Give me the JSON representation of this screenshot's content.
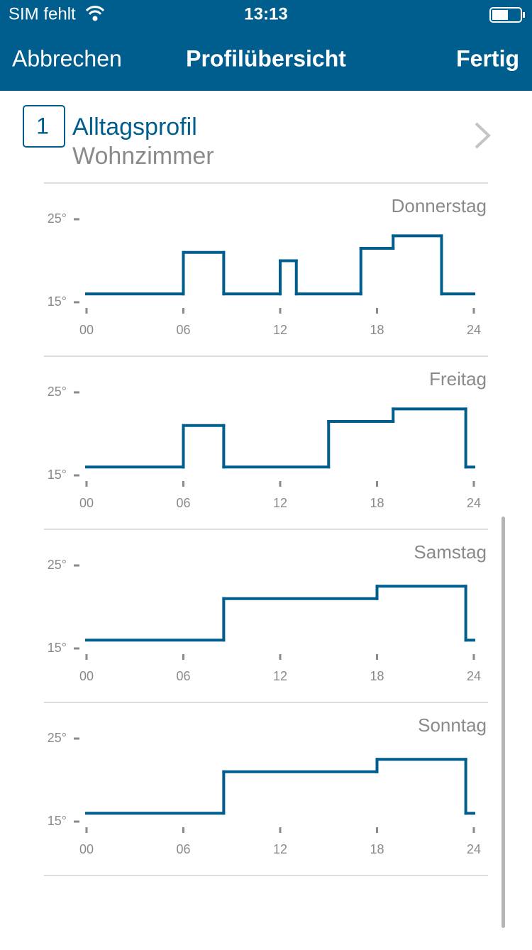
{
  "status_bar": {
    "carrier": "SIM fehlt",
    "time": "13:13"
  },
  "nav_bar": {
    "left": "Abbrechen",
    "title": "Profilübersicht",
    "right": "Fertig"
  },
  "profile": {
    "number": "1",
    "name": "Alltagsprofil",
    "room": "Wohnzimmer"
  },
  "chart_data": [
    {
      "type": "line",
      "step": "post",
      "title": "Donnerstag",
      "color": "#005e8e",
      "x": [
        0,
        6,
        8.5,
        12,
        13,
        17,
        19,
        22
      ],
      "values": [
        16,
        21,
        16,
        20,
        16,
        21.5,
        23,
        16
      ],
      "xlim": [
        0,
        24
      ],
      "xticks": [
        {
          "value": 0,
          "label": "00"
        },
        {
          "value": 6,
          "label": "06"
        },
        12,
        18,
        24
      ],
      "ylim": [
        15,
        25
      ],
      "yticks": [
        {
          "value": 25,
          "label": "25°"
        },
        {
          "value": 15,
          "label": "15°"
        }
      ]
    },
    {
      "type": "line",
      "step": "post",
      "title": "Freitag",
      "color": "#005e8e",
      "x": [
        0,
        6,
        8.5,
        15,
        19,
        23.5
      ],
      "values": [
        16,
        21,
        16,
        21.5,
        23,
        16
      ],
      "xlim": [
        0,
        24
      ],
      "xticks": [
        {
          "value": 0,
          "label": "00"
        },
        {
          "value": 6,
          "label": "06"
        },
        12,
        18,
        24
      ],
      "ylim": [
        15,
        25
      ],
      "yticks": [
        {
          "value": 25,
          "label": "25°"
        },
        {
          "value": 15,
          "label": "15°"
        }
      ]
    },
    {
      "type": "line",
      "step": "post",
      "title": "Samstag",
      "color": "#005e8e",
      "x": [
        0,
        8.5,
        18,
        23.5
      ],
      "values": [
        16,
        21,
        22.5,
        16
      ],
      "xlim": [
        0,
        24
      ],
      "xticks": [
        {
          "value": 0,
          "label": "00"
        },
        {
          "value": 6,
          "label": "06"
        },
        12,
        18,
        24
      ],
      "ylim": [
        15,
        25
      ],
      "yticks": [
        {
          "value": 25,
          "label": "25°"
        },
        {
          "value": 15,
          "label": "15°"
        }
      ]
    },
    {
      "type": "line",
      "step": "post",
      "title": "Sonntag",
      "color": "#005e8e",
      "x": [
        0,
        8.5,
        18,
        23.5
      ],
      "values": [
        16,
        21,
        22.5,
        16
      ],
      "xlim": [
        0,
        24
      ],
      "xticks": [
        {
          "value": 0,
          "label": "00"
        },
        {
          "value": 6,
          "label": "06"
        },
        12,
        18,
        24
      ],
      "ylim": [
        15,
        25
      ],
      "yticks": [
        {
          "value": 25,
          "label": "25°"
        },
        {
          "value": 15,
          "label": "15°"
        }
      ]
    }
  ]
}
